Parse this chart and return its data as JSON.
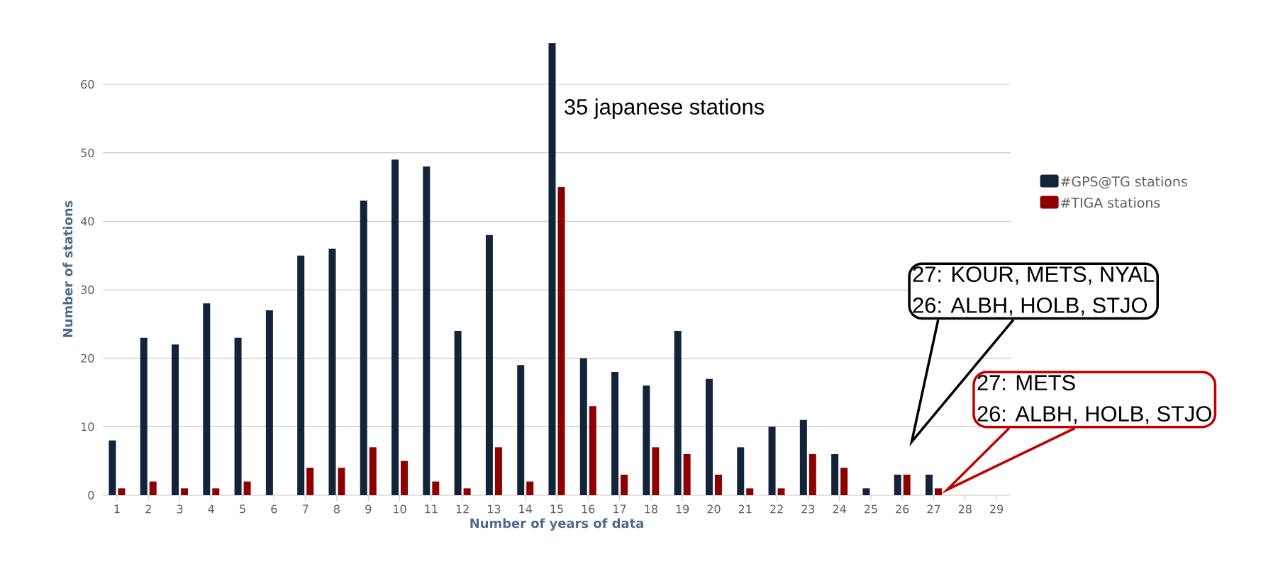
{
  "chart_data": {
    "type": "bar",
    "xlabel": "Number of years of data",
    "ylabel": "Number of stations",
    "categories": [
      "1",
      "2",
      "3",
      "4",
      "5",
      "6",
      "7",
      "8",
      "9",
      "10",
      "11",
      "12",
      "13",
      "14",
      "15",
      "16",
      "17",
      "18",
      "19",
      "20",
      "21",
      "22",
      "23",
      "24",
      "25",
      "26",
      "27",
      "28",
      "29"
    ],
    "series": [
      {
        "name": "#GPS@TG stations",
        "color": "#13233a",
        "values": [
          8,
          23,
          22,
          28,
          23,
          27,
          35,
          36,
          43,
          49,
          48,
          24,
          38,
          19,
          66,
          20,
          18,
          16,
          24,
          17,
          7,
          10,
          11,
          6,
          1,
          3,
          3,
          0,
          0
        ]
      },
      {
        "name": "#TIGA stations",
        "color": "#8e0000",
        "values": [
          1,
          2,
          1,
          1,
          2,
          0,
          4,
          4,
          7,
          5,
          2,
          1,
          7,
          2,
          45,
          13,
          3,
          7,
          6,
          3,
          1,
          1,
          6,
          4,
          0,
          3,
          1,
          0,
          0
        ]
      }
    ],
    "ylim": [
      0,
      66
    ],
    "yticks": [
      0,
      10,
      20,
      30,
      40,
      50,
      60
    ],
    "grid": "y",
    "legend": "right",
    "annotations": [
      "35 japanese stations",
      "27: KOUR, METS, NYAL",
      "26: ALBH, HOLB, STJO",
      "27: METS",
      "26: ALBH, HOLB, STJO"
    ]
  }
}
